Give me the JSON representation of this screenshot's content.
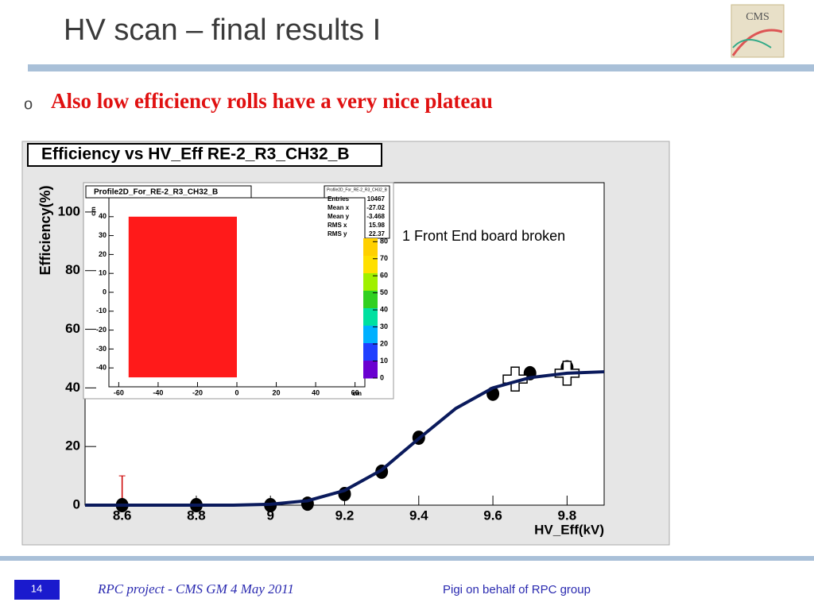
{
  "slide": {
    "title": "HV scan – final results I",
    "bullet": "Also low efficiency rolls have a very nice plateau",
    "logo": "CMS",
    "page_number": "14",
    "footer_left": "RPC project - CMS GM 4 May 2011",
    "footer_right": "Pigi on behalf of RPC group"
  },
  "chart_data": [
    {
      "type": "scatter",
      "title": "Efficiency vs HV_Eff RE-2_R3_CH32_B",
      "x_label": "HV_Eff(kV)",
      "y_label": "Efficiency(%)",
      "annotation": "1 Front End board broken",
      "xlim": [
        8.5,
        9.9
      ],
      "xticks": [
        8.6,
        8.8,
        9,
        9.2,
        9.4,
        9.6,
        9.8
      ],
      "ylim": [
        0,
        110
      ],
      "yticks": [
        0,
        20,
        40,
        60,
        80,
        100
      ],
      "series": [
        {
          "marker": "dot",
          "color": "#000000",
          "error_color": "#cc0000",
          "x": [
            8.6,
            8.8,
            9.0,
            9.1,
            9.2,
            9.3,
            9.4,
            9.6,
            9.7,
            9.8
          ],
          "values": [
            0,
            0,
            0,
            0.5,
            3.8,
            11.4,
            23,
            38,
            45,
            47
          ],
          "errors": [
            10,
            null,
            null,
            null,
            null,
            null,
            null,
            null,
            null,
            null
          ]
        },
        {
          "marker": "cross",
          "color": "#000000",
          "x": [
            9.66,
            9.8
          ],
          "values": [
            43,
            45
          ]
        },
        {
          "marker": "line",
          "color": "#0a1a5c",
          "x": [
            8.5,
            8.6,
            8.7,
            8.8,
            8.9,
            9.0,
            9.1,
            9.2,
            9.3,
            9.4,
            9.5,
            9.6,
            9.7,
            9.8,
            9.9
          ],
          "values": [
            0,
            0,
            0,
            0,
            0,
            0.3,
            1.5,
            5,
            12,
            22.7,
            33,
            40,
            43.5,
            45,
            45.5
          ]
        }
      ]
    },
    {
      "type": "heatmap",
      "title": "Profile2D_For_RE-2_R3_CH32_B",
      "x_label": "cm",
      "y_label": "cm",
      "color": "#ff1a1a",
      "xlim": [
        -65,
        65
      ],
      "xticks": [
        -60,
        -40,
        -20,
        0,
        20,
        40,
        60
      ],
      "ylim": [
        -50,
        50
      ],
      "yticks": [
        -40,
        -30,
        -20,
        -10,
        0,
        10,
        20,
        30,
        40
      ],
      "zlim": [
        0,
        82
      ],
      "zticks": [
        0,
        10,
        20,
        30,
        40,
        50,
        60,
        70,
        80
      ],
      "stats_title": "Profile2D_For_RE-2_R3_CH32_B",
      "stats": [
        {
          "name": "Entries",
          "value": 10467
        },
        {
          "name": "Mean x",
          "value": -27.02
        },
        {
          "name": "Mean y",
          "value": -3.468
        },
        {
          "name": "RMS x",
          "value": 15.98
        },
        {
          "name": "RMS y",
          "value": 22.37
        }
      ]
    }
  ]
}
